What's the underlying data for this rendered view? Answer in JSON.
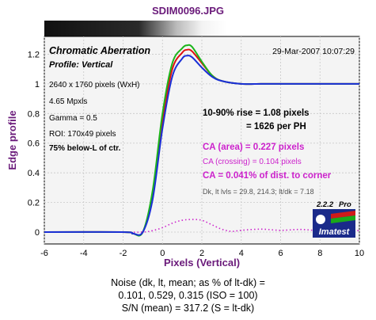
{
  "title": "SDIM0096.JPG",
  "panel": {
    "heading": "Chromatic Aberration",
    "profile": "Profile: Vertical",
    "timestamp": "29-Mar-2007 10:07:29",
    "info": [
      "2640 x 1760 pixels (WxH)",
      "4.65 Mpxls",
      "Gamma = 0.5",
      "ROI: 170x49 pixels"
    ],
    "location": "75% below-L of ctr.",
    "rise_line1": "10-90% rise = 1.08 pixels",
    "rise_line2": "= 1626 per PH",
    "ca_area": "CA (area) = 0.227 pixels",
    "ca_crossing": "CA (crossing) = 0.104 pixels",
    "ca_dist": "CA = 0.041% of dist. to corner",
    "levels": "Dk, lt lvls = 29.8, 214.3;  lt/dk = 7.18"
  },
  "logo": {
    "version": "2.2.2",
    "edition": "Pro",
    "name": "Imatest"
  },
  "footer": {
    "line1": "Noise (dk, lt, mean; as % of lt-dk) =",
    "line2": "0.101,  0.529,  0.315  (ISO =  100)",
    "line3": "S/N (mean) = 317.2  (S = lt-dk)"
  },
  "colors": {
    "red": "#dd1111",
    "green": "#1bb51b",
    "blue": "#1a2fd6",
    "magenta": "#cc22cc",
    "axis_text": "#6a1a7a",
    "frame_bg": "#f4f4f4"
  },
  "chart_data": {
    "type": "line",
    "xlabel": "Pixels (Vertical)",
    "ylabel": "Edge profile",
    "xlim": [
      -6,
      10
    ],
    "ylim": [
      -0.08,
      1.32
    ],
    "xticks": [
      "-6",
      "-4",
      "-2",
      "0",
      "2",
      "4",
      "6",
      "8",
      "10"
    ],
    "yticks": [
      "0",
      "0.2",
      "0.4",
      "0.6",
      "0.8",
      "1",
      "1.2"
    ],
    "grid": true,
    "series": [
      {
        "color": "red",
        "x": [
          -6,
          -2,
          -1.5,
          -1,
          -0.5,
          0,
          0.5,
          1,
          1.25,
          1.5,
          2,
          2.5,
          3,
          4,
          5,
          6,
          8,
          10
        ],
        "y": [
          0,
          0,
          -0.01,
          0,
          0.25,
          0.75,
          1.1,
          1.21,
          1.23,
          1.22,
          1.14,
          1.06,
          1.02,
          1.0,
          1.0,
          1.0,
          1.0,
          1.0
        ]
      },
      {
        "color": "green",
        "x": [
          -6,
          -2,
          -1.5,
          -1,
          -0.5,
          0,
          0.5,
          1,
          1.25,
          1.5,
          2,
          2.5,
          3,
          4,
          5,
          6,
          8,
          10
        ],
        "y": [
          0,
          0,
          -0.01,
          0,
          0.28,
          0.8,
          1.14,
          1.24,
          1.26,
          1.25,
          1.15,
          1.06,
          1.02,
          1.0,
          1.0,
          1.0,
          1.0,
          1.0
        ]
      },
      {
        "color": "blue",
        "x": [
          -6,
          -2,
          -1.5,
          -1,
          -0.5,
          0,
          0.5,
          1,
          1.25,
          1.5,
          2,
          2.5,
          3,
          4,
          5,
          6,
          8,
          10
        ],
        "y": [
          0,
          0,
          -0.01,
          0,
          0.22,
          0.7,
          1.05,
          1.17,
          1.19,
          1.18,
          1.11,
          1.05,
          1.02,
          1.0,
          1.0,
          1.0,
          1.0,
          1.0
        ]
      },
      {
        "color": "magenta",
        "dashed": true,
        "x": [
          -2,
          -1,
          -0.5,
          0,
          0.5,
          1,
          1.5,
          2,
          2.5,
          3,
          3.5,
          4,
          5,
          6,
          7,
          8,
          9,
          10
        ],
        "y": [
          0,
          0,
          0.01,
          0.03,
          0.06,
          0.08,
          0.085,
          0.08,
          0.05,
          0.02,
          0.005,
          0.012,
          0.02,
          0.012,
          0.018,
          0.01,
          0.015,
          0.01
        ]
      }
    ]
  }
}
